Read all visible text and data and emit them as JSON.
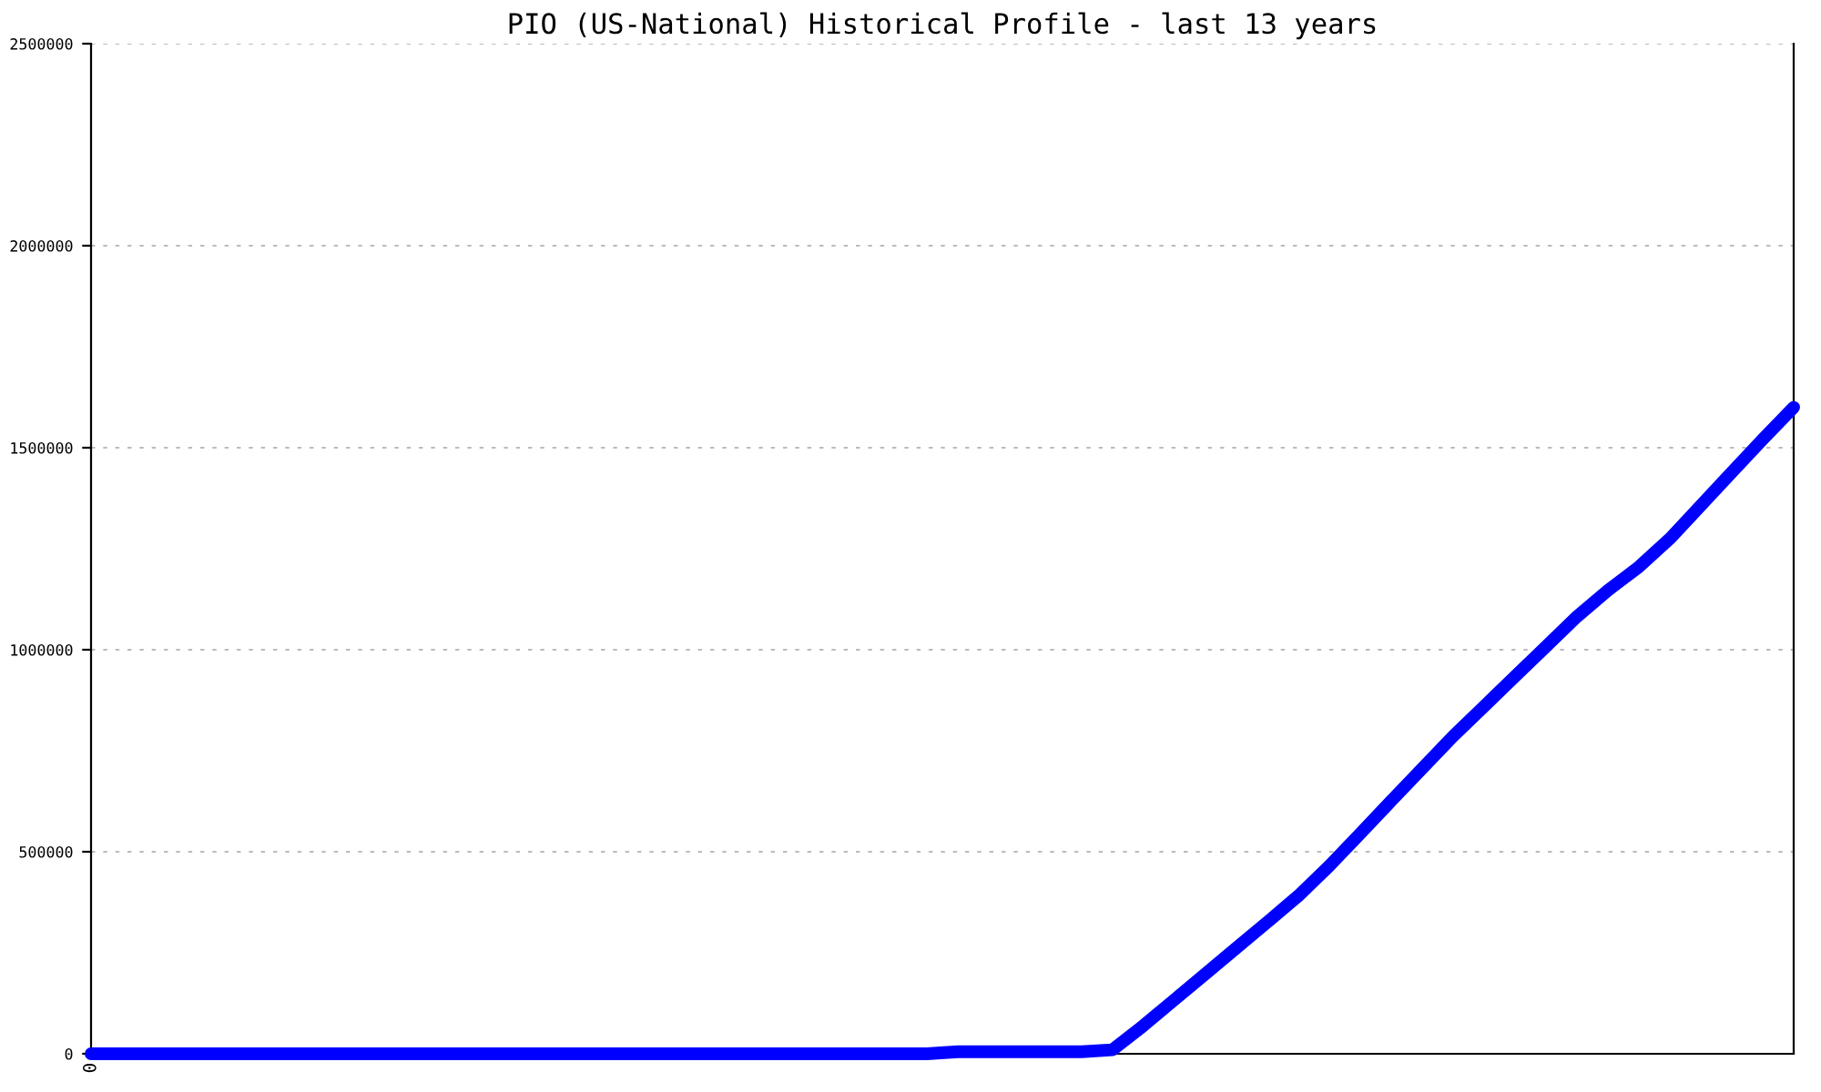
{
  "chart_data": {
    "type": "line",
    "title": "PIO (US-National) Historical Profile - last 13 years",
    "categories": [
      "0",
      null,
      null,
      null,
      null,
      null,
      null,
      null,
      null,
      null,
      null,
      null,
      null,
      null,
      null,
      null,
      null,
      null,
      null,
      null,
      null,
      null,
      null,
      null,
      null,
      null,
      null,
      null,
      null,
      null,
      null,
      null,
      null,
      null,
      null,
      null,
      null,
      null,
      null,
      null,
      null,
      null,
      null,
      null,
      null,
      null,
      null,
      null,
      null,
      null,
      null,
      null,
      null,
      null,
      null,
      null
    ],
    "series": [
      {
        "color": "#0000ff",
        "values": [
          0,
          0,
          0,
          0,
          0,
          0,
          0,
          0,
          0,
          0,
          0,
          0,
          0,
          0,
          0,
          0,
          0,
          0,
          0,
          0,
          0,
          0,
          0,
          0,
          0,
          0,
          0,
          0,
          5000,
          5000,
          5000,
          5000,
          5000,
          10000,
          70000,
          134000,
          198000,
          262000,
          326000,
          391000,
          465000,
          545000,
          626000,
          706000,
          786000,
          860000,
          934000,
          1008000,
          1082000,
          1147000,
          1205000,
          1275000,
          1357000,
          1439000,
          1521000,
          1600000
        ]
      }
    ],
    "ylim": [
      0,
      2500000
    ],
    "yticks": [
      0,
      500000,
      1000000,
      1500000,
      2000000,
      2500000
    ],
    "grid": "y",
    "marker": "none",
    "line_style": "solid"
  }
}
